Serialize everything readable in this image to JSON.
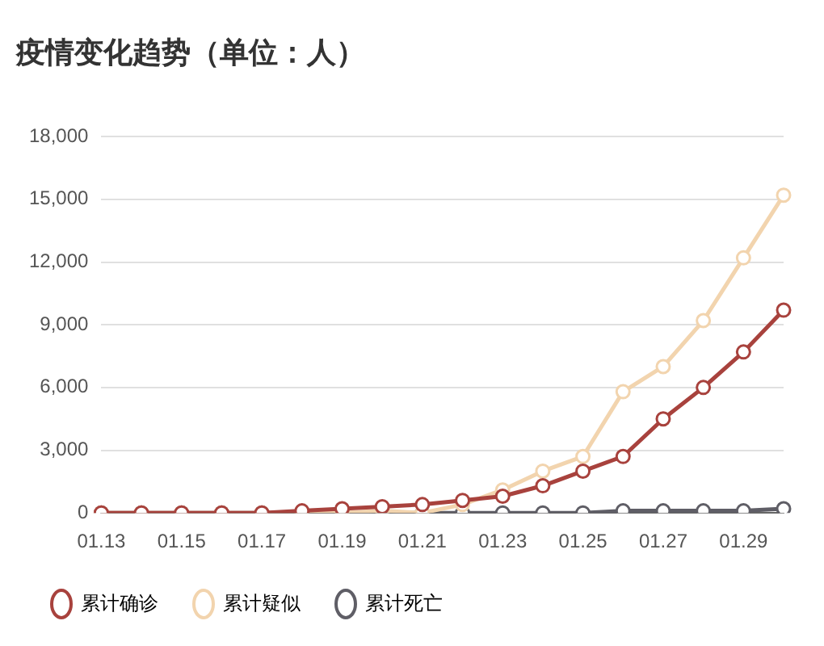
{
  "chart_data": {
    "type": "line",
    "title": "疫情变化趋势（单位：人）",
    "categories": [
      "01.13",
      null,
      "01.15",
      null,
      "01.17",
      null,
      "01.19",
      null,
      "01.21",
      null,
      "01.23",
      null,
      "01.25",
      null,
      "01.27",
      null,
      "01.29",
      null
    ],
    "series": [
      {
        "name": "累计确诊",
        "color": "#a8423d",
        "values": [
          0,
          0,
          0,
          0,
          0,
          100,
          200,
          300,
          400,
          600,
          800,
          1300,
          2000,
          2700,
          4500,
          6000,
          7700,
          9700
        ]
      },
      {
        "name": "累计疑似",
        "color": "#f2d4ae",
        "values": [
          0,
          0,
          0,
          0,
          0,
          0,
          0,
          100,
          0,
          400,
          1100,
          2000,
          2700,
          5800,
          7000,
          9200,
          12200,
          15200
        ]
      },
      {
        "name": "累计死亡",
        "color": "#5f5e66",
        "values": [
          0,
          0,
          0,
          0,
          0,
          0,
          0,
          0,
          0,
          0,
          0,
          0,
          0,
          100,
          100,
          100,
          100,
          200
        ]
      }
    ],
    "ylim": [
      0,
      18000
    ],
    "yticks": [
      {
        "value": 0,
        "label": "0"
      },
      {
        "value": 3000,
        "label": "3,000"
      },
      {
        "value": 6000,
        "label": "6,000"
      },
      {
        "value": 9000,
        "label": "9,000"
      },
      {
        "value": 12000,
        "label": "12,000"
      },
      {
        "value": 15000,
        "label": "15,000"
      },
      {
        "value": 18000,
        "label": "18,000"
      }
    ],
    "grid": "y",
    "legend": "bottom left",
    "marker": "circle",
    "line_style": "solid"
  }
}
